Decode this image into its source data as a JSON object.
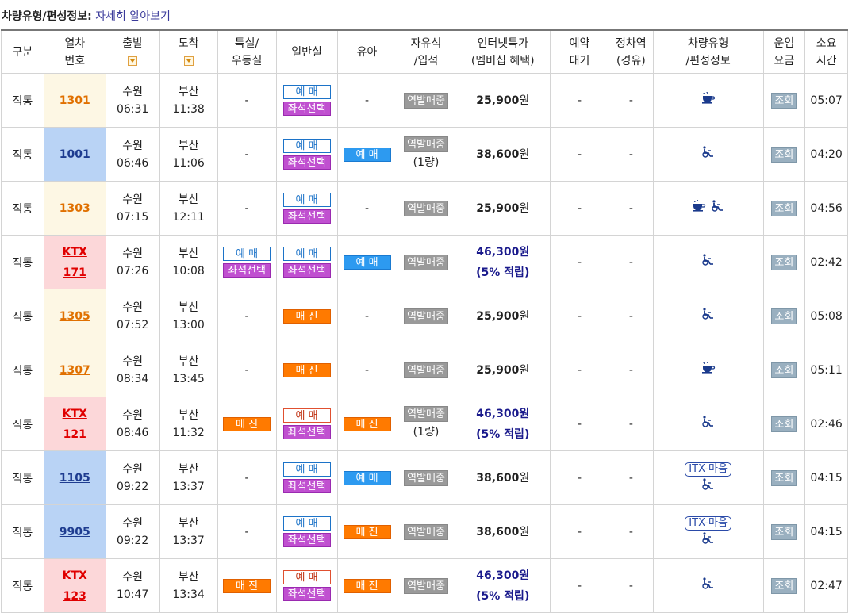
{
  "topline": {
    "label": "차량유형/편성정보:",
    "link": "자세히 알아보기"
  },
  "headers": {
    "division": "구분",
    "train_no_1": "열차",
    "train_no_2": "번호",
    "departure": "출발",
    "arrival": "도착",
    "special_1": "특실/",
    "special_2": "우등실",
    "general": "일반실",
    "infant": "유아",
    "free_1": "자유석",
    "free_2": "/입석",
    "internet_1": "인터넷특가",
    "internet_2": "(멤버십 혜택)",
    "wait_1": "예약",
    "wait_2": "대기",
    "stops_1": "정차역",
    "stops_2": "(경유)",
    "type_1": "차량유형",
    "type_2": "/편성정보",
    "fare_1": "운임",
    "fare_2": "요금",
    "duration_1": "소요",
    "duration_2": "시간"
  },
  "labels": {
    "yemae": "예 매",
    "seat_select": "좌석선택",
    "sold_out": "매 진",
    "station_sale": "역발매중",
    "query": "조회",
    "dash": "-"
  },
  "rows": [
    {
      "division": "직통",
      "train_l1": "",
      "train_l2": "1301",
      "dep_st": "수원",
      "dep_time": "06:31",
      "arr_st": "부산",
      "arr_time": "11:38",
      "free_sub": "",
      "price": "25,900",
      "won": "원",
      "price_note": "",
      "duration": "05:07"
    },
    {
      "division": "직통",
      "train_l1": "",
      "train_l2": "1001",
      "dep_st": "수원",
      "dep_time": "06:46",
      "arr_st": "부산",
      "arr_time": "11:06",
      "free_sub": "(1량)",
      "price": "38,600",
      "won": "원",
      "price_note": "",
      "duration": "04:20"
    },
    {
      "division": "직통",
      "train_l1": "",
      "train_l2": "1303",
      "dep_st": "수원",
      "dep_time": "07:15",
      "arr_st": "부산",
      "arr_time": "12:11",
      "free_sub": "",
      "price": "25,900",
      "won": "원",
      "price_note": "",
      "duration": "04:56"
    },
    {
      "division": "직통",
      "train_l1": "KTX",
      "train_l2": "171",
      "dep_st": "수원",
      "dep_time": "07:26",
      "arr_st": "부산",
      "arr_time": "10:08",
      "free_sub": "",
      "price": "46,300",
      "won": "원",
      "price_note": "(5% 적립)",
      "duration": "02:42"
    },
    {
      "division": "직통",
      "train_l1": "",
      "train_l2": "1305",
      "dep_st": "수원",
      "dep_time": "07:52",
      "arr_st": "부산",
      "arr_time": "13:00",
      "free_sub": "",
      "price": "25,900",
      "won": "원",
      "price_note": "",
      "duration": "05:08"
    },
    {
      "division": "직통",
      "train_l1": "",
      "train_l2": "1307",
      "dep_st": "수원",
      "dep_time": "08:34",
      "arr_st": "부산",
      "arr_time": "13:45",
      "free_sub": "",
      "price": "25,900",
      "won": "원",
      "price_note": "",
      "duration": "05:11"
    },
    {
      "division": "직통",
      "train_l1": "KTX",
      "train_l2": "121",
      "dep_st": "수원",
      "dep_time": "08:46",
      "arr_st": "부산",
      "arr_time": "11:32",
      "free_sub": "(1량)",
      "price": "46,300",
      "won": "원",
      "price_note": "(5% 적립)",
      "duration": "02:46"
    },
    {
      "division": "직통",
      "train_l1": "",
      "train_l2": "1105",
      "dep_st": "수원",
      "dep_time": "09:22",
      "arr_st": "부산",
      "arr_time": "13:37",
      "free_sub": "",
      "price": "38,600",
      "won": "원",
      "price_note": "",
      "duration": "04:15",
      "itx": "ITX-마음"
    },
    {
      "division": "직통",
      "train_l1": "",
      "train_l2": "9905",
      "dep_st": "수원",
      "dep_time": "09:22",
      "arr_st": "부산",
      "arr_time": "13:37",
      "free_sub": "",
      "price": "38,600",
      "won": "원",
      "price_note": "",
      "duration": "04:15",
      "itx": "ITX-마음"
    },
    {
      "division": "직통",
      "train_l1": "KTX",
      "train_l2": "123",
      "dep_st": "수원",
      "dep_time": "10:47",
      "arr_st": "부산",
      "arr_time": "13:34",
      "free_sub": "",
      "price": "46,300",
      "won": "원",
      "price_note": "(5% 적립)",
      "duration": "02:47"
    }
  ],
  "icons": {
    "cafe": "cafe-car-icon",
    "wheelchair": "wheelchair-icon"
  },
  "colors": {
    "accent_orange": "#ff7a00",
    "accent_blue": "#2d9af0",
    "seat_purple": "#c050d0",
    "ktx_red": "#e00000"
  }
}
